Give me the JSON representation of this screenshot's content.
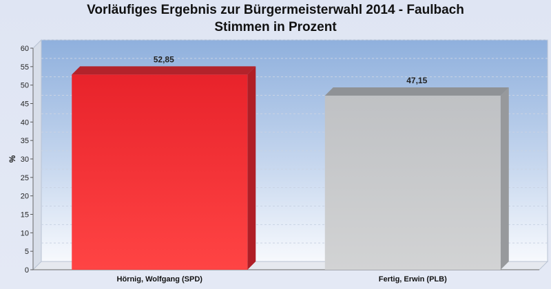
{
  "title": {
    "line1": "Vorläufiges Ergebnis zur Bürgermeisterwahl 2014 - Faulbach",
    "line2": "Stimmen in Prozent"
  },
  "chart_data": {
    "type": "bar",
    "title": "Vorläufiges Ergebnis zur Bürgermeisterwahl 2014 - Faulbach",
    "subtitle": "Stimmen in Prozent",
    "categories": [
      "Hörnig, Wolfgang (SPD)",
      "Fertig, Erwin (PLB)"
    ],
    "values": [
      52.85,
      47.15
    ],
    "data_labels": [
      "52,85",
      "47,15"
    ],
    "colors": [
      "#ee2a30",
      "#c4c6c9"
    ],
    "xlabel": "",
    "ylabel": "%",
    "ylim": [
      0,
      60
    ],
    "yticks": [
      0,
      5,
      10,
      15,
      20,
      25,
      30,
      35,
      40,
      45,
      50,
      55,
      60
    ],
    "grid": true,
    "legend": "none",
    "three_d": true
  }
}
